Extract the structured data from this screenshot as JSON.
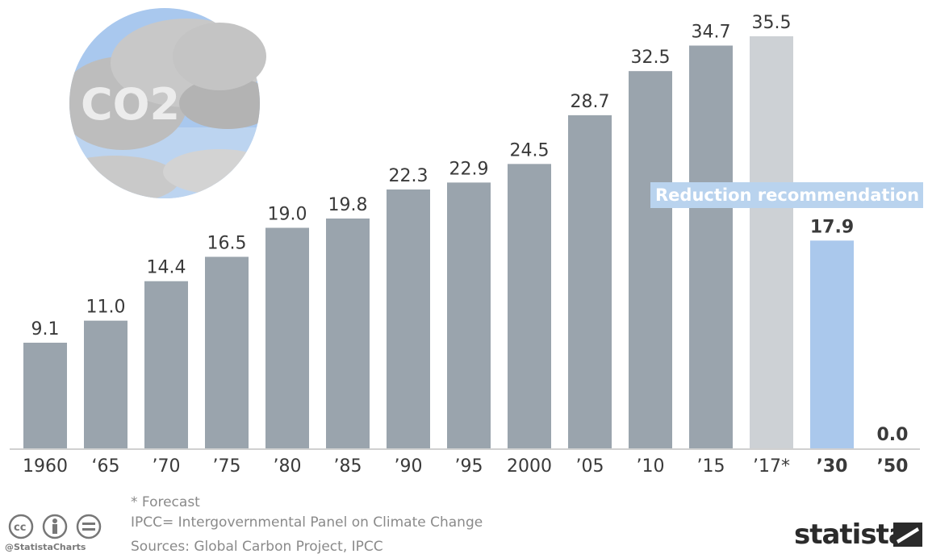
{
  "chart_data": {
    "type": "bar",
    "title": "",
    "xlabel": "",
    "ylabel": "",
    "ylim": [
      0,
      36
    ],
    "grid": false,
    "categories": [
      "1960",
      "‘65",
      "’70",
      "’75",
      "’80",
      "’85",
      "’90",
      "’95",
      "2000",
      "’05",
      "’10",
      "’15",
      "’17*",
      "’30",
      "’50"
    ],
    "values": [
      9.1,
      11.0,
      14.4,
      16.5,
      19.0,
      19.8,
      22.3,
      22.9,
      24.5,
      28.7,
      32.5,
      34.7,
      35.5,
      17.9,
      0.0
    ],
    "value_labels": [
      "9.1",
      "11.0",
      "14.4",
      "16.5",
      "19.0",
      "19.8",
      "22.3",
      "22.9",
      "24.5",
      "28.7",
      "32.5",
      "34.7",
      "35.5",
      "17.9",
      "0.0"
    ],
    "bar_colors": [
      "#9aa4ad",
      "#9aa4ad",
      "#9aa4ad",
      "#9aa4ad",
      "#9aa4ad",
      "#9aa4ad",
      "#9aa4ad",
      "#9aa4ad",
      "#9aa4ad",
      "#9aa4ad",
      "#9aa4ad",
      "#9aa4ad",
      "#cdd1d5",
      "#aac8ec",
      "#aac8ec"
    ],
    "annotation": "Reduction recommendation"
  },
  "footer": {
    "note_forecast": "* Forecast",
    "note_ipcc": "IPCC= Intergovernmental Panel on Climate Change",
    "sources": "Sources: Global Carbon Project, IPCC",
    "handle": "@StatistaCharts",
    "brand": "statista"
  },
  "illustration": {
    "label": "CO2"
  }
}
